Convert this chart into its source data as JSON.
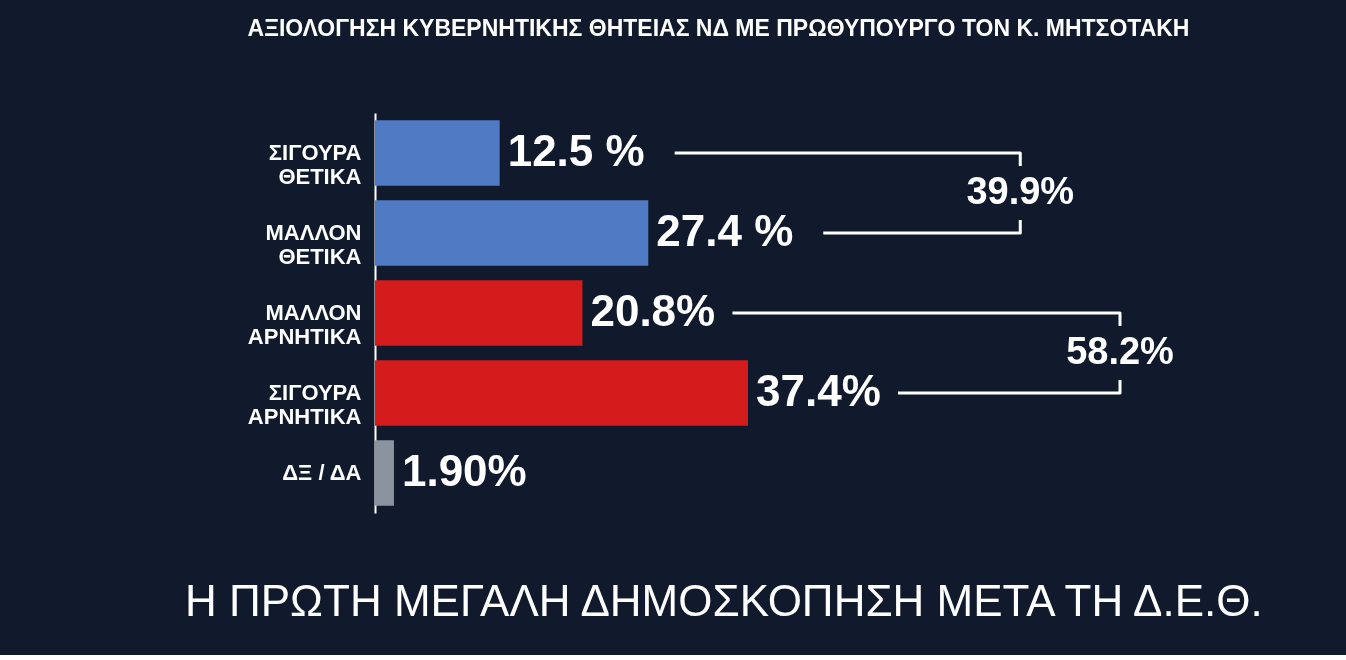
{
  "chart_data": {
    "type": "bar",
    "orientation": "horizontal",
    "title": "ΑΞΙΟΛΟΓΗΣΗ ΚΥΒΕΡΝΗΤΙΚΗΣ ΘΗΤΕΙΑΣ ΝΔ ΜΕ ΠΡΩΘΥΠΟΥΡΓΟ ΤΟΝ Κ. ΜΗΤΣΟΤΑΚΗ",
    "categories": [
      "ΣΙΓΟΥΡΑ\nΘΕΤΙΚΑ",
      "ΜΑΛΛΟΝ\nΘΕΤΙΚΑ",
      "ΜΑΛΛΟΝ\nΑΡΝΗΤΙΚΑ",
      "ΣΙΓΟΥΡΑ\nΑΡΝΗΤΙΚΑ",
      "ΔΞ / ΔΑ"
    ],
    "values": [
      12.5,
      27.4,
      20.8,
      37.4,
      1.9
    ],
    "colors": [
      "#4f7bc4",
      "#4f7bc4",
      "#d41c1c",
      "#d41c1c",
      "#8c93a0"
    ],
    "value_labels": [
      "12.5 %",
      "27.4 %",
      "20.8%",
      "37.4%",
      "1.90%"
    ],
    "annotations": [
      "39.9%",
      "58.2%",
      "Η ΠΡΩΤΗ ΜΕΓΑΛΗ ΔΗΜΟΣΚΟΠΗΣΗ ΜΕΤΑ ΤΗ Δ.Ε.Θ."
    ]
  }
}
